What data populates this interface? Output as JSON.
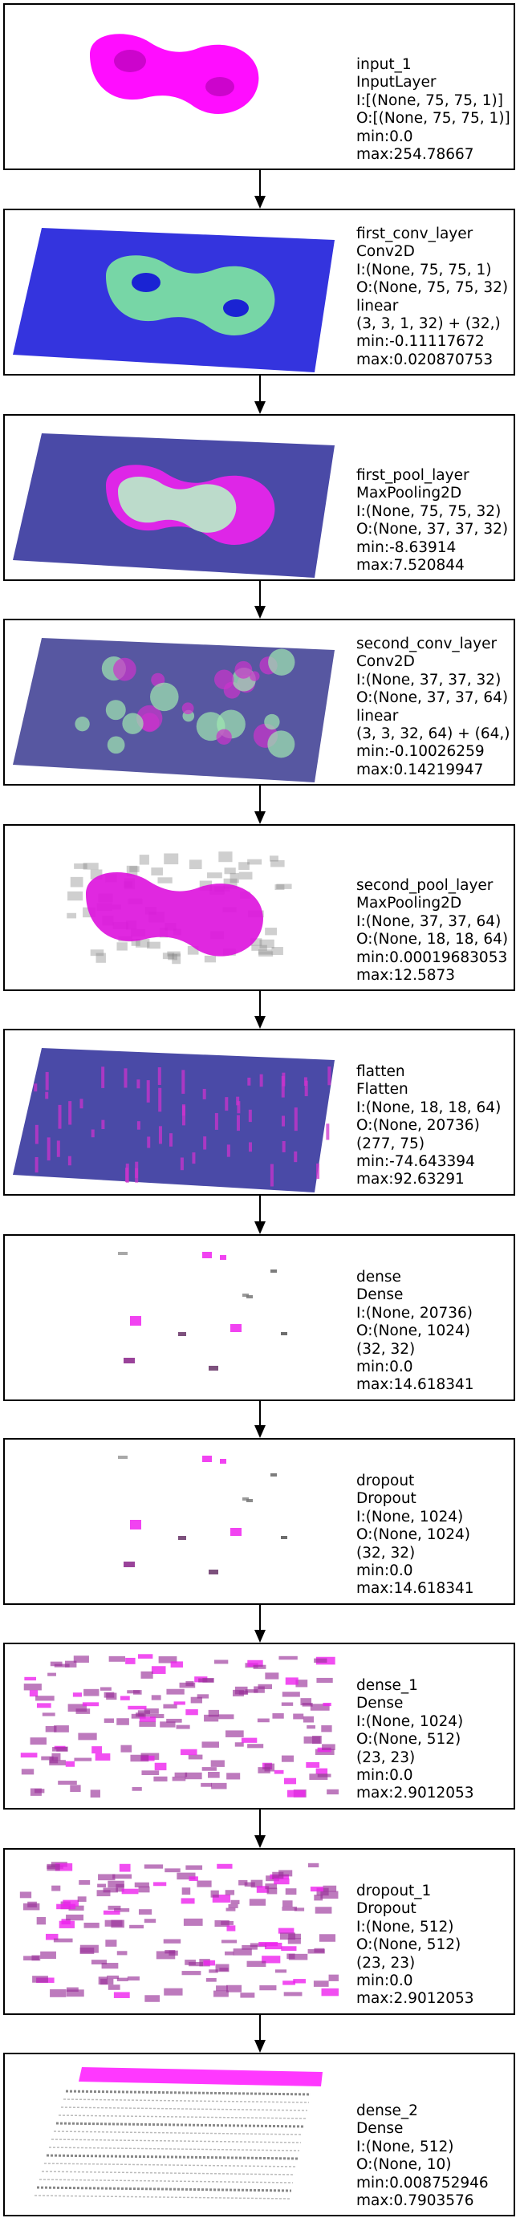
{
  "layers": [
    {
      "title": "input_1",
      "lines": [
        "InputLayer",
        "I:[(None, 75, 75, 1)]",
        "O:[(None, 75, 75, 1)]",
        "min:0.0",
        "max:254.78667"
      ],
      "viz": "blob",
      "colors": {
        "fill": "#ff00ff"
      }
    },
    {
      "title": "first_conv_layer",
      "lines": [
        "Conv2D",
        "I:(None, 75, 75, 1)",
        "O:(None, 75, 75, 32)",
        "linear",
        "(3, 3, 1, 32) + (32,)",
        "min:-0.11117672",
        "max:0.020870753"
      ],
      "viz": "plane-green",
      "colors": {
        "plane": "#1010d8",
        "accent": "#7ee8a0"
      }
    },
    {
      "title": "first_pool_layer",
      "lines": [
        "MaxPooling2D",
        "I:(None, 75, 75, 32)",
        "O:(None, 37, 37, 32)",
        "min:-8.63914",
        "max:7.520844"
      ],
      "viz": "plane-magenta",
      "colors": {
        "plane": "#2a2a98",
        "accent": "#ee22ee",
        "inner": "#b8f0c8"
      }
    },
    {
      "title": "second_conv_layer",
      "lines": [
        "Conv2D",
        "I:(None, 37, 37, 32)",
        "O:(None, 37, 37, 64)",
        "linear",
        "(3, 3, 32, 64) + (64,)",
        "min:-0.10026259",
        "max:0.14219947"
      ],
      "viz": "plane-mixed",
      "colors": {
        "plane": "#3a3a90",
        "accent": "#cc33cc",
        "inner": "#a0e8b0"
      }
    },
    {
      "title": "second_pool_layer",
      "lines": [
        "MaxPooling2D",
        "I:(None, 37, 37, 64)",
        "O:(None, 18, 18, 64)",
        "min:0.00019683053",
        "max:12.5873"
      ],
      "viz": "pool-blob",
      "colors": {
        "fill": "#dd11dd"
      }
    },
    {
      "title": "flatten",
      "lines": [
        "Flatten",
        "I:(None, 18, 18, 64)",
        "O:(None, 20736)",
        "(277, 75)",
        "min:-74.643394",
        "max:92.63291"
      ],
      "viz": "plane-stripes",
      "colors": {
        "plane": "#2a2a98",
        "accent": "#cc33cc"
      }
    },
    {
      "title": "dense",
      "lines": [
        "Dense",
        "I:(None, 20736)",
        "O:(None, 1024)",
        "(32, 32)",
        "min:0.0",
        "max:14.618341"
      ],
      "viz": "sparse",
      "colors": {
        "fill": "#ee22ee"
      }
    },
    {
      "title": "dropout",
      "lines": [
        "Dropout",
        "I:(None, 1024)",
        "O:(None, 1024)",
        "(32, 32)",
        "min:0.0",
        "max:14.618341"
      ],
      "viz": "sparse",
      "colors": {
        "fill": "#ee22ee"
      }
    },
    {
      "title": "dense_1",
      "lines": [
        "Dense",
        "I:(None, 1024)",
        "O:(None, 512)",
        "(23, 23)",
        "min:0.0",
        "max:2.9012053"
      ],
      "viz": "dense-grid",
      "colors": {
        "fill": "#993399"
      }
    },
    {
      "title": "dropout_1",
      "lines": [
        "Dropout",
        "I:(None, 512)",
        "O:(None, 512)",
        "(23, 23)",
        "min:0.0",
        "max:2.9012053"
      ],
      "viz": "dense-grid",
      "colors": {
        "fill": "#993399"
      }
    },
    {
      "title": "dense_2",
      "lines": [
        "Dense",
        "I:(None, 512)",
        "O:(None, 10)",
        "min:0.008752946",
        "max:0.7903576"
      ],
      "viz": "bars",
      "colors": {
        "fill": "#ff22ff"
      }
    }
  ]
}
